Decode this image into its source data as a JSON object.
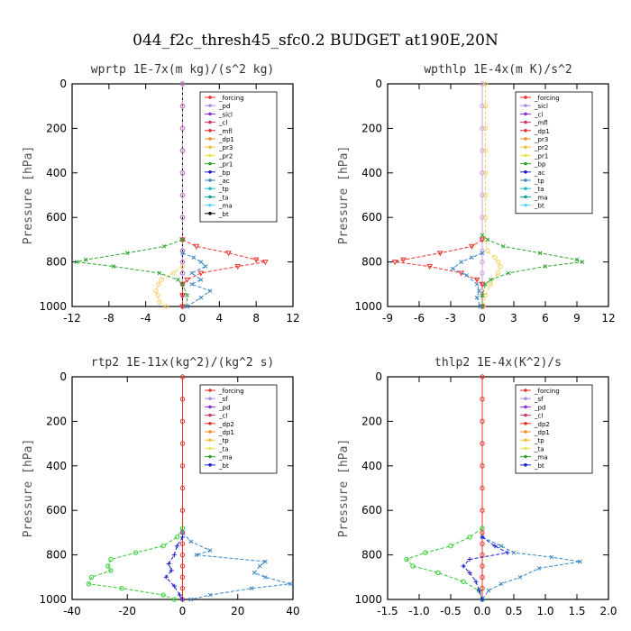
{
  "figure_title": "044_f2c_thresh45_sfc0.2  BUDGET at190E,20N",
  "chart_data": [
    {
      "type": "line",
      "title": "wprtp  1E-7x(m kg)/(s^2 kg)",
      "ylabel": "Pressure [hPa]",
      "xlim": [
        -12,
        12
      ],
      "ylim": [
        1000,
        0
      ],
      "xticks": [
        "-12",
        "-8",
        "-4",
        "0",
        "4",
        "8",
        "12"
      ],
      "yticks": [
        "0",
        "200",
        "400",
        "600",
        "800",
        "1000"
      ],
      "legend_position": "top-right",
      "legend": [
        "_forcing",
        "_pd",
        "_sicl",
        "_cl",
        "_mfl",
        "_dp1",
        "_pr3",
        "_pr2",
        "_pr1",
        "_bp",
        "_ac",
        "_tp",
        "_ta",
        "_ma",
        "_bt"
      ],
      "series": [
        {
          "name": "_forcing",
          "color": "#000000",
          "marker": "o",
          "y": [
            0,
            100,
            200,
            300,
            400,
            500,
            600,
            700,
            750,
            800,
            850,
            900,
            950,
            1000
          ],
          "x": [
            0,
            0,
            0,
            0,
            0,
            0,
            0,
            0,
            0,
            0,
            0,
            0,
            0,
            0
          ]
        },
        {
          "name": "_pd",
          "color": "#d58ad5",
          "marker": "o",
          "y": [
            0,
            100,
            200,
            300,
            400,
            500,
            600,
            700,
            750,
            800,
            850,
            900,
            950,
            1000
          ],
          "x": [
            0,
            0,
            0,
            0,
            0,
            0,
            0,
            0,
            0,
            0,
            0,
            0,
            0,
            0
          ]
        },
        {
          "name": "_dp1",
          "color": "#e8332c",
          "marker": "v",
          "y": [
            700,
            730,
            760,
            790,
            800,
            820,
            850,
            880,
            900,
            950,
            1000
          ],
          "x": [
            0,
            1.5,
            5,
            8,
            9,
            6,
            2,
            0.5,
            0,
            0,
            0
          ]
        },
        {
          "name": "_pr1",
          "color": "#f3d36a",
          "marker": "o",
          "y": [
            820,
            850,
            880,
            900,
            930,
            950,
            980,
            1000
          ],
          "x": [
            0,
            -1,
            -2.3,
            -2.6,
            -2.9,
            -2.7,
            -2.5,
            -1.8
          ]
        },
        {
          "name": "_ac",
          "color": "#2ea52e",
          "marker": "x",
          "y": [
            700,
            730,
            760,
            790,
            800,
            820,
            850,
            880,
            900,
            950,
            1000
          ],
          "x": [
            0,
            -2,
            -6,
            -10.5,
            -11.5,
            -7.5,
            -2.5,
            -0.5,
            0,
            0.5,
            0.5
          ]
        },
        {
          "name": "_tp",
          "color": "#3a86c6",
          "marker": "x",
          "y": [
            760,
            780,
            800,
            820,
            850,
            880,
            900,
            930,
            960,
            1000
          ],
          "x": [
            0,
            1.2,
            2,
            2.5,
            1,
            2,
            1,
            3,
            2,
            0.5
          ]
        }
      ]
    },
    {
      "type": "line",
      "title": "wpthlp  1E-4x(m K)/s^2",
      "ylabel": "Pressure [hPa]",
      "xlim": [
        -9,
        12
      ],
      "ylim": [
        1000,
        0
      ],
      "xticks": [
        "-9",
        "-6",
        "-3",
        "0",
        "3",
        "6",
        "9",
        "12"
      ],
      "yticks": [
        "0",
        "200",
        "400",
        "600",
        "800",
        "1000"
      ],
      "legend_position": "top-right",
      "legend": [
        "_forcing",
        "_sicl",
        "_cl",
        "_mfl",
        "_dp1",
        "_pr3",
        "_pr2",
        "_pr1",
        "_bp",
        "_ac",
        "_tp",
        "_ta",
        "_ma",
        "_bt"
      ],
      "series": [
        {
          "name": "_forcing",
          "color": "#c8a0e0",
          "marker": "o",
          "y": [
            0,
            100,
            200,
            300,
            400,
            500,
            600,
            700,
            750,
            800,
            850,
            900,
            950,
            1000
          ],
          "x": [
            0,
            0,
            0,
            0,
            0,
            0,
            0,
            0,
            0,
            0,
            0,
            0,
            0,
            0
          ]
        },
        {
          "name": "_pr1",
          "color": "#f3d36a",
          "marker": "o",
          "y": [
            0,
            100,
            200,
            300,
            400,
            500,
            600,
            700,
            750,
            780,
            800,
            820,
            850,
            900,
            950,
            1000
          ],
          "x": [
            0.3,
            0.3,
            0.3,
            0.3,
            0.3,
            0.3,
            0.3,
            0.3,
            0.5,
            1.2,
            1.5,
            1.7,
            1.5,
            0.8,
            0.3,
            0.1
          ]
        },
        {
          "name": "_dp1",
          "color": "#e8332c",
          "marker": "v",
          "y": [
            700,
            730,
            760,
            790,
            800,
            820,
            850,
            880,
            900,
            1000
          ],
          "x": [
            0,
            -1,
            -4,
            -7.5,
            -8.3,
            -5,
            -2,
            -0.5,
            0,
            0
          ]
        },
        {
          "name": "_ac",
          "color": "#2ea52e",
          "marker": "x",
          "y": [
            680,
            700,
            730,
            760,
            790,
            800,
            820,
            850,
            880,
            900,
            950,
            1000
          ],
          "x": [
            0,
            0.5,
            2,
            5.5,
            9,
            9.5,
            6,
            2.5,
            0.8,
            0.3,
            0,
            0
          ]
        },
        {
          "name": "_tp",
          "color": "#3a86c6",
          "marker": "x",
          "y": [
            760,
            780,
            800,
            830,
            860,
            900,
            930,
            960,
            1000
          ],
          "x": [
            0,
            -1,
            -2,
            -2.8,
            -1.5,
            -0.5,
            -0.3,
            -0.5,
            -0.2
          ]
        }
      ]
    },
    {
      "type": "line",
      "title": "rtp2  1E-11x(kg^2)/(kg^2 s)",
      "ylabel": "Pressure [hPa]",
      "xlim": [
        -40,
        40
      ],
      "ylim": [
        1000,
        0
      ],
      "xticks": [
        "-40",
        "-20",
        "0",
        "20",
        "40"
      ],
      "yticks": [
        "0",
        "200",
        "400",
        "600",
        "800",
        "1000"
      ],
      "legend_position": "top-right",
      "legend": [
        "_forcing",
        "_sf",
        "_pd",
        "_cl",
        "_dp2",
        "_dp1",
        "_tp",
        "_ta",
        "_ma",
        "_bt"
      ],
      "series": [
        {
          "name": "_forcing",
          "color": "#e8332c",
          "marker": "o",
          "y": [
            0,
            100,
            200,
            300,
            400,
            500,
            600,
            700,
            750,
            800,
            850,
            900,
            950,
            1000
          ],
          "x": [
            0,
            0,
            0,
            0,
            0,
            0,
            0,
            0,
            0,
            0,
            0,
            0,
            0,
            0
          ]
        },
        {
          "name": "_dp1",
          "color": "#33cc33",
          "marker": "o",
          "y": [
            680,
            720,
            760,
            790,
            820,
            850,
            870,
            900,
            930,
            950,
            980,
            1000
          ],
          "x": [
            0,
            -2,
            -7,
            -17,
            -26,
            -27,
            -26,
            -33,
            -34,
            -22,
            -7,
            -3
          ]
        },
        {
          "name": "_tp",
          "color": "#3a86c6",
          "marker": "x",
          "y": [
            700,
            740,
            780,
            800,
            830,
            850,
            880,
            900,
            930,
            950,
            980,
            1000
          ],
          "x": [
            0,
            3,
            10,
            5,
            30,
            28,
            26,
            30,
            39,
            25,
            10,
            3
          ]
        },
        {
          "name": "_ta",
          "color": "#1a1acc",
          "marker": "+",
          "y": [
            720,
            760,
            800,
            840,
            870,
            900,
            940,
            980,
            1000
          ],
          "x": [
            0,
            -2,
            -3,
            -5,
            -4,
            -6,
            -3,
            -1,
            0
          ]
        }
      ]
    },
    {
      "type": "line",
      "title": "thlp2  1E-4x(K^2)/s",
      "ylabel": "Pressure [hPa]",
      "xlim": [
        -1.5,
        2.0
      ],
      "ylim": [
        1000,
        0
      ],
      "xticks": [
        "-1.5",
        "-1.0",
        "-0.5",
        "0.0",
        "0.5",
        "1.0",
        "1.5",
        "2.0"
      ],
      "yticks": [
        "0",
        "200",
        "400",
        "600",
        "800",
        "1000"
      ],
      "legend_position": "top-right",
      "legend": [
        "_forcing",
        "_sf",
        "_pd",
        "_cl",
        "_dp2",
        "_dp1",
        "_tp",
        "_ta",
        "_ma",
        "_bt"
      ],
      "series": [
        {
          "name": "_forcing",
          "color": "#e8332c",
          "marker": "o",
          "y": [
            0,
            100,
            200,
            300,
            400,
            500,
            600,
            700,
            750,
            800,
            850,
            900,
            950,
            1000
          ],
          "x": [
            0,
            0,
            0,
            0,
            0,
            0,
            0,
            0,
            0,
            0,
            0,
            0,
            0,
            0
          ]
        },
        {
          "name": "_dp1",
          "color": "#33cc33",
          "marker": "o",
          "y": [
            680,
            720,
            760,
            790,
            820,
            850,
            880,
            920,
            960,
            1000
          ],
          "x": [
            0,
            -0.2,
            -0.5,
            -0.9,
            -1.2,
            -1.1,
            -0.7,
            -0.3,
            -0.05,
            0
          ]
        },
        {
          "name": "_tp",
          "color": "#3a86c6",
          "marker": "x",
          "y": [
            720,
            760,
            790,
            810,
            830,
            860,
            900,
            930,
            960,
            1000
          ],
          "x": [
            0,
            0.3,
            0.5,
            1.1,
            1.55,
            0.9,
            0.6,
            0.3,
            0.1,
            0
          ]
        },
        {
          "name": "_ta",
          "color": "#1a1acc",
          "marker": "+",
          "y": [
            720,
            760,
            790,
            820,
            850,
            880,
            920,
            960,
            1000
          ],
          "x": [
            0,
            0.2,
            0.4,
            -0.2,
            -0.3,
            -0.2,
            -0.1,
            -0.05,
            0
          ]
        }
      ]
    }
  ]
}
